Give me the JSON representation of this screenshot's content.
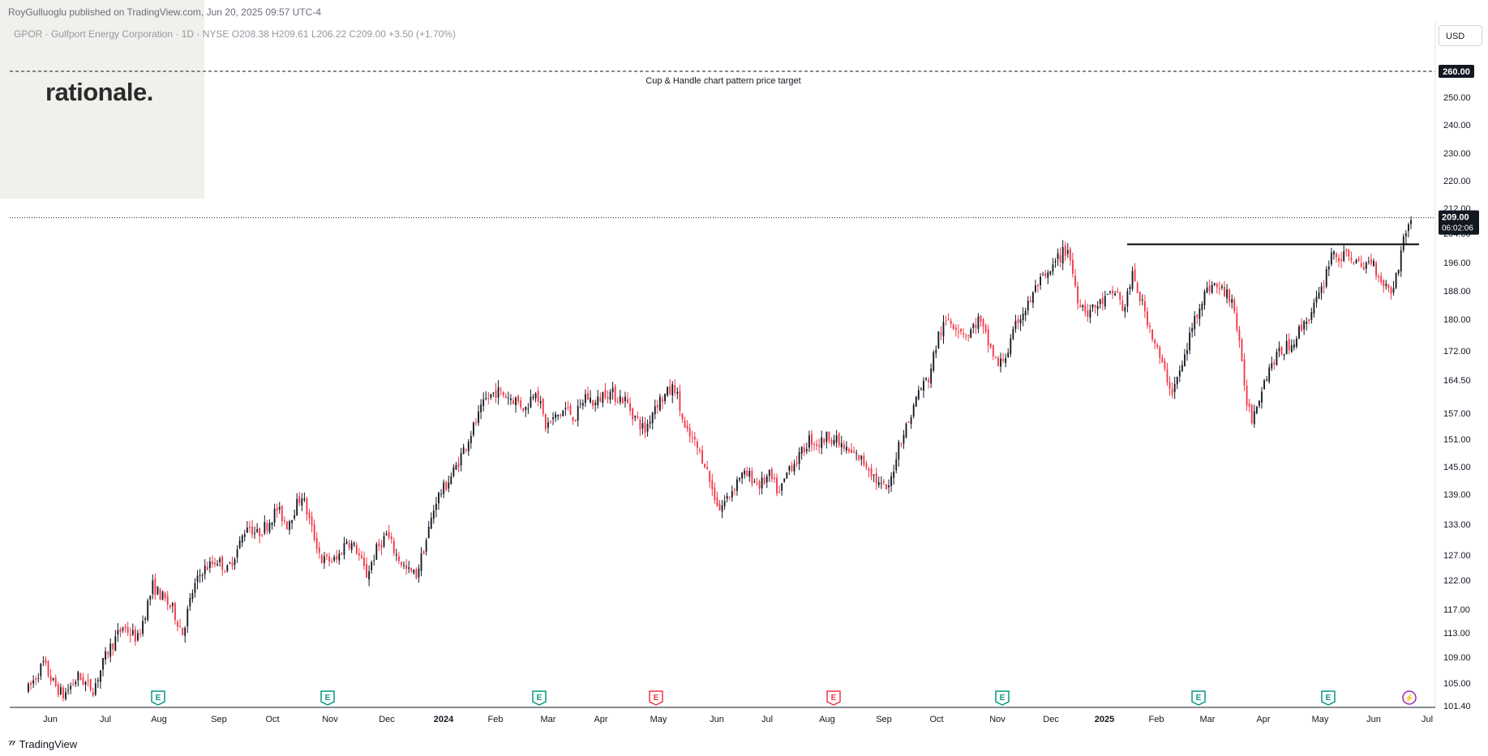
{
  "header": {
    "published": "RoyGulluoglu published on TradingView.com, Jun 20, 2025 09:57 UTC-4",
    "symbol_line": "GPOR · Gulfport Energy Corporation · 1D · NYSE  O208.38  H209.61  L206.22  C209.00  +3.50 (+1.70%)"
  },
  "logo": {
    "text": "rationale."
  },
  "currency": "USD",
  "footer": {
    "brand": "TradingView",
    "icon": "tradingview-logo-icon"
  },
  "colors": {
    "up": "#131722",
    "down": "#f23645",
    "earnings": "#089981",
    "earnings_bad": "#f23645",
    "axis_text": "#131722",
    "grid_line": "#000000"
  },
  "chart_data": {
    "type": "candlestick",
    "title": "GPOR · Gulfport Energy Corporation · 1D · NYSE",
    "ylim": [
      101.4,
      300
    ],
    "y_ticks": [
      "101.40",
      "105.00",
      "109.00",
      "113.00",
      "117.00",
      "122.00",
      "127.00",
      "133.00",
      "139.00",
      "145.00",
      "151.00",
      "157.00",
      "164.50",
      "172.00",
      "180.00",
      "188.00",
      "196.00",
      "204.00",
      "212.00",
      "220.00",
      "230.00",
      "240.00",
      "250.00"
    ],
    "x_ticks": [
      "Jun",
      "Jul",
      "Aug",
      "Sep",
      "Oct",
      "Nov",
      "Dec",
      "2024",
      "Feb",
      "Mar",
      "Apr",
      "May",
      "Jun",
      "Jul",
      "Aug",
      "Sep",
      "Oct",
      "Nov",
      "Dec",
      "2025",
      "Feb",
      "Mar",
      "Apr",
      "May",
      "Jun",
      "Jul"
    ],
    "last_price": {
      "label": "209.00",
      "countdown": "06:02:06",
      "value": 209.0
    },
    "ohlc": {
      "open": "208.38",
      "high": "209.61",
      "low": "206.22",
      "close": "209.00",
      "change": "+3.50 (+1.70%)"
    },
    "annotations": [
      {
        "label": "Cup & Handle chart pattern price target",
        "value": 260.0,
        "value_label": "260.00",
        "style": "dashed"
      },
      {
        "label": "",
        "value": 201.0,
        "style": "solid",
        "from": "2025-01",
        "to": "2025-06"
      }
    ],
    "earnings_markers": [
      {
        "month": "Aug",
        "type": "E",
        "sentiment": "good"
      },
      {
        "month": "Nov",
        "type": "E",
        "sentiment": "good"
      },
      {
        "month": "Feb",
        "type": "E",
        "sentiment": "good"
      },
      {
        "month": "May",
        "type": "E",
        "sentiment": "bad"
      },
      {
        "month": "Aug",
        "type": "E",
        "sentiment": "bad"
      },
      {
        "month": "Nov",
        "type": "E",
        "sentiment": "good"
      },
      {
        "month": "Feb",
        "type": "E",
        "sentiment": "good"
      },
      {
        "month": "Apr",
        "type": "E",
        "sentiment": "good"
      },
      {
        "month": "Jun",
        "type": "event",
        "sentiment": "neutral"
      }
    ],
    "price_path": [
      [
        0,
        104
      ],
      [
        6,
        108
      ],
      [
        10,
        105
      ],
      [
        14,
        103
      ],
      [
        20,
        106
      ],
      [
        26,
        104
      ],
      [
        32,
        110
      ],
      [
        38,
        114
      ],
      [
        44,
        112
      ],
      [
        50,
        121
      ],
      [
        54,
        119
      ],
      [
        58,
        117
      ],
      [
        62,
        113
      ],
      [
        66,
        120
      ],
      [
        70,
        124
      ],
      [
        76,
        126
      ],
      [
        80,
        124
      ],
      [
        84,
        128
      ],
      [
        88,
        133
      ],
      [
        92,
        131
      ],
      [
        96,
        133
      ],
      [
        100,
        136
      ],
      [
        104,
        133
      ],
      [
        108,
        137
      ],
      [
        110,
        139
      ],
      [
        114,
        132
      ],
      [
        118,
        126
      ],
      [
        124,
        126
      ],
      [
        128,
        130
      ],
      [
        132,
        128
      ],
      [
        136,
        123
      ],
      [
        140,
        128
      ],
      [
        144,
        131
      ],
      [
        148,
        127
      ],
      [
        152,
        124
      ],
      [
        156,
        123
      ],
      [
        160,
        130
      ],
      [
        164,
        138
      ],
      [
        168,
        141
      ],
      [
        172,
        145
      ],
      [
        176,
        150
      ],
      [
        180,
        155
      ],
      [
        184,
        160
      ],
      [
        188,
        162
      ],
      [
        192,
        161
      ],
      [
        196,
        160
      ],
      [
        200,
        158
      ],
      [
        204,
        163
      ],
      [
        208,
        154
      ],
      [
        212,
        156
      ],
      [
        216,
        158
      ],
      [
        220,
        156
      ],
      [
        224,
        161
      ],
      [
        228,
        159
      ],
      [
        232,
        162
      ],
      [
        236,
        161
      ],
      [
        240,
        160
      ],
      [
        244,
        156
      ],
      [
        248,
        153
      ],
      [
        252,
        159
      ],
      [
        256,
        161
      ],
      [
        260,
        163
      ],
      [
        264,
        153
      ],
      [
        268,
        150
      ],
      [
        272,
        146
      ],
      [
        275,
        140
      ],
      [
        278,
        136
      ],
      [
        282,
        139
      ],
      [
        286,
        143
      ],
      [
        290,
        143
      ],
      [
        294,
        141
      ],
      [
        298,
        143
      ],
      [
        302,
        139
      ],
      [
        306,
        145
      ],
      [
        310,
        147
      ],
      [
        314,
        151
      ],
      [
        318,
        150
      ],
      [
        322,
        152
      ],
      [
        326,
        150
      ],
      [
        330,
        148
      ],
      [
        334,
        147
      ],
      [
        338,
        145
      ],
      [
        342,
        141
      ],
      [
        346,
        140
      ],
      [
        350,
        150
      ],
      [
        354,
        155
      ],
      [
        358,
        162
      ],
      [
        362,
        165
      ],
      [
        366,
        176
      ],
      [
        370,
        180
      ],
      [
        374,
        178
      ],
      [
        378,
        176
      ],
      [
        382,
        180
      ],
      [
        386,
        174
      ],
      [
        390,
        168
      ],
      [
        394,
        172
      ],
      [
        398,
        180
      ],
      [
        402,
        184
      ],
      [
        406,
        190
      ],
      [
        410,
        192
      ],
      [
        414,
        197
      ],
      [
        418,
        200
      ],
      [
        422,
        186
      ],
      [
        426,
        182
      ],
      [
        430,
        184
      ],
      [
        434,
        186
      ],
      [
        438,
        188
      ],
      [
        440,
        182
      ],
      [
        444,
        192
      ],
      [
        448,
        184
      ],
      [
        452,
        176
      ],
      [
        456,
        168
      ],
      [
        460,
        162
      ],
      [
        464,
        168
      ],
      [
        468,
        178
      ],
      [
        472,
        186
      ],
      [
        476,
        190
      ],
      [
        480,
        188
      ],
      [
        484,
        186
      ],
      [
        486,
        178
      ],
      [
        488,
        168
      ],
      [
        490,
        160
      ],
      [
        492,
        156
      ],
      [
        496,
        163
      ],
      [
        500,
        169
      ],
      [
        504,
        172
      ],
      [
        508,
        174
      ],
      [
        512,
        178
      ],
      [
        516,
        182
      ],
      [
        520,
        188
      ],
      [
        524,
        199
      ],
      [
        528,
        197
      ],
      [
        532,
        198
      ],
      [
        536,
        194
      ],
      [
        540,
        197
      ],
      [
        544,
        191
      ],
      [
        548,
        188
      ],
      [
        550,
        192
      ],
      [
        552,
        199
      ],
      [
        554,
        205
      ],
      [
        556,
        209
      ]
    ]
  }
}
